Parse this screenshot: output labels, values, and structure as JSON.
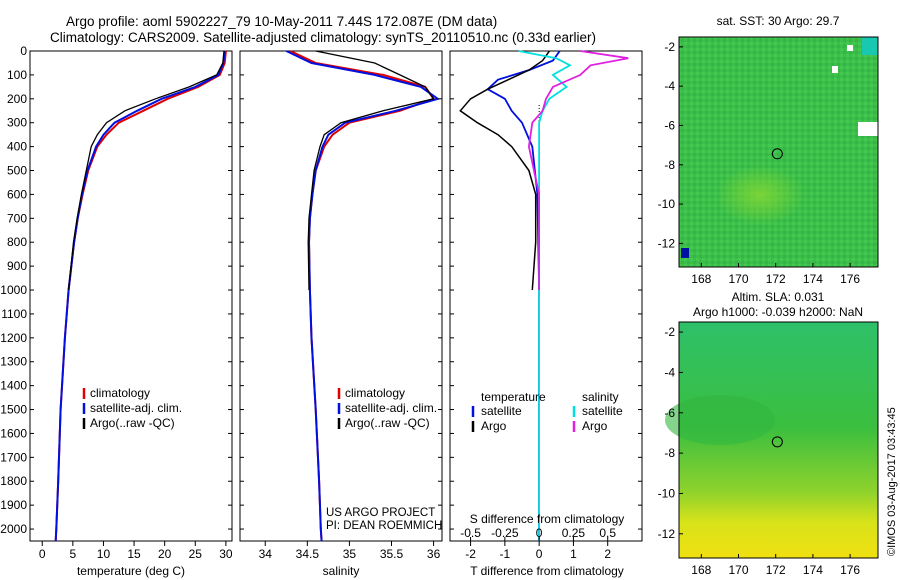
{
  "header": {
    "line1": "Argo profile: aoml 5902227_79 10-May-2011 7.44S 172.087E (DM data)",
    "line2": "Climatology: CARS2009. Satellite-adjusted climatology: synTS_20110510.nc (0.33d earlier)"
  },
  "side_label": "©IMOS 03-Aug-2017 03:43:45",
  "colors": {
    "climatology": "#e00000",
    "satellite": "#0010e0",
    "argo": "#000000",
    "sal_satellite": "#00e0e0",
    "sal_argo": "#e020e0"
  },
  "chart_data": [
    {
      "type": "line",
      "name": "temperature-profile",
      "xlabel": "temperature (deg C)",
      "ylabel": "",
      "xlim": [
        -2,
        31
      ],
      "ylim": [
        2050,
        0
      ],
      "xticks": [
        0,
        5,
        10,
        15,
        20,
        25,
        30
      ],
      "yticks": [
        0,
        100,
        200,
        300,
        400,
        500,
        600,
        700,
        800,
        900,
        1000,
        1100,
        1200,
        1300,
        1400,
        1500,
        1600,
        1700,
        1800,
        1900,
        2000
      ],
      "legend": [
        "climatology",
        "satellite-adj. clim.",
        "Argo(..raw -QC)"
      ],
      "legend_position": "bottom-center",
      "series": [
        {
          "name": "climatology",
          "depth": [
            0,
            50,
            100,
            150,
            200,
            250,
            300,
            350,
            400,
            500,
            600,
            700,
            800,
            1000,
            1200,
            1500,
            1800,
            2000,
            2050
          ],
          "values": [
            30.0,
            29.8,
            29.0,
            25.5,
            20.5,
            16.5,
            12.5,
            10.5,
            9.0,
            7.5,
            6.6,
            5.8,
            5.2,
            4.3,
            3.7,
            3.0,
            2.6,
            2.3,
            2.2
          ]
        },
        {
          "name": "satellite",
          "depth": [
            0,
            50,
            100,
            150,
            200,
            250,
            300,
            350,
            400,
            500,
            600,
            700,
            800,
            1000,
            1200,
            1500,
            1800,
            2000,
            2050
          ],
          "values": [
            29.8,
            29.6,
            28.8,
            25.0,
            19.5,
            15.5,
            11.8,
            10.0,
            8.8,
            7.4,
            6.5,
            5.8,
            5.2,
            4.3,
            3.7,
            3.0,
            2.6,
            2.3,
            2.2
          ]
        },
        {
          "name": "argo",
          "depth": [
            0,
            50,
            100,
            150,
            200,
            250,
            300,
            350,
            400,
            500,
            600,
            700,
            800,
            1000
          ],
          "values": [
            29.7,
            29.5,
            28.5,
            24.0,
            18.5,
            13.5,
            10.5,
            9.0,
            8.0,
            7.2,
            6.4,
            5.7,
            5.1,
            4.3
          ]
        }
      ]
    },
    {
      "type": "line",
      "name": "salinity-profile",
      "xlabel": "salinity",
      "xlim": [
        33.7,
        36.1
      ],
      "ylim": [
        2050,
        0
      ],
      "xticks": [
        34,
        34.5,
        35,
        35.5,
        36
      ],
      "legend": [
        "climatology",
        "satellite-adj. clim.",
        "Argo(..raw -QC)"
      ],
      "legend_position": "bottom-right",
      "annotation": [
        "US ARGO PROJECT",
        "PI: DEAN ROEMMICH"
      ],
      "series": [
        {
          "name": "climatology",
          "depth": [
            0,
            50,
            100,
            150,
            200,
            250,
            300,
            350,
            400,
            500,
            600,
            700,
            800,
            1000,
            1200,
            1500,
            1800,
            2000,
            2050
          ],
          "values": [
            34.3,
            34.6,
            35.4,
            35.9,
            36.0,
            35.6,
            35.0,
            34.8,
            34.7,
            34.6,
            34.56,
            34.53,
            34.52,
            34.53,
            34.55,
            34.6,
            34.64,
            34.66,
            34.67
          ]
        },
        {
          "name": "satellite",
          "depth": [
            0,
            50,
            100,
            150,
            200,
            250,
            300,
            350,
            400,
            500,
            600,
            700,
            800,
            1000,
            1200,
            1500,
            1800,
            2000,
            2050
          ],
          "values": [
            34.25,
            34.55,
            35.3,
            35.85,
            36.05,
            35.55,
            34.95,
            34.75,
            34.68,
            34.6,
            34.56,
            34.53,
            34.52,
            34.53,
            34.55,
            34.6,
            34.64,
            34.66,
            34.67
          ]
        },
        {
          "name": "argo",
          "depth": [
            0,
            50,
            100,
            150,
            200,
            250,
            300,
            350,
            400,
            500,
            600,
            700,
            800,
            1000
          ],
          "values": [
            34.6,
            35.3,
            35.6,
            35.9,
            36.0,
            35.4,
            34.9,
            34.7,
            34.65,
            34.58,
            34.55,
            34.52,
            34.51,
            34.52
          ]
        }
      ]
    },
    {
      "type": "line",
      "name": "difference-from-climatology",
      "xlabel": "T difference from climatology",
      "xlabel_top": "S difference from climatology",
      "xlim": [
        -2.6,
        3.0
      ],
      "ylim": [
        2050,
        0
      ],
      "xticks_t": [
        -2,
        -1,
        0,
        1,
        2
      ],
      "xticks_s": [
        "-0.5",
        "-0.25",
        "0",
        "0.25",
        "0.5"
      ],
      "xticks_s_pos": [
        -2,
        -1,
        0,
        1,
        2
      ],
      "legend_temperature": {
        "title": "temperature",
        "items": [
          "satellite",
          "Argo"
        ]
      },
      "legend_salinity": {
        "title": "salinity",
        "items": [
          "satellite",
          "Argo"
        ]
      },
      "series": [
        {
          "name": "T satellite",
          "depth": [
            0,
            40,
            80,
            120,
            160,
            200,
            250,
            300,
            400,
            600,
            1000,
            2050
          ],
          "values": [
            0.6,
            0.4,
            -0.3,
            -1.2,
            -1.5,
            -1.0,
            -0.8,
            -0.5,
            -0.2,
            -0.05,
            0.0,
            0.0
          ]
        },
        {
          "name": "T argo",
          "depth": [
            0,
            40,
            80,
            120,
            160,
            200,
            250,
            300,
            350,
            400,
            500,
            600,
            800,
            1000
          ],
          "values": [
            0.3,
            0.1,
            -0.3,
            -0.9,
            -1.5,
            -2.0,
            -2.3,
            -1.8,
            -1.2,
            -0.8,
            -0.3,
            -0.1,
            -0.1,
            -0.2
          ]
        },
        {
          "name": "S satellite",
          "depth": [
            0,
            30,
            60,
            100,
            150,
            200,
            250,
            300,
            400,
            600,
            1000,
            2050
          ],
          "values": [
            -0.6,
            0.5,
            0.9,
            0.4,
            0.8,
            0.3,
            0.1,
            0.0,
            0.0,
            0.0,
            0.0,
            0.0
          ]
        },
        {
          "name": "S argo",
          "depth": [
            0,
            30,
            60,
            100,
            150,
            200,
            250,
            300,
            400,
            600,
            800,
            1000
          ],
          "values": [
            1.2,
            2.6,
            1.5,
            1.2,
            0.4,
            0.2,
            0.1,
            -0.2,
            -0.3,
            0.0,
            0.0,
            0.0
          ]
        }
      ]
    },
    {
      "type": "heatmap",
      "name": "sst-map",
      "title": "sat. SST: 30 Argo: 29.7",
      "xticks": [
        168,
        170,
        172,
        174,
        176
      ],
      "yticks": [
        -2,
        -4,
        -6,
        -8,
        -10,
        -12
      ],
      "xlim": [
        166.8,
        177.5
      ],
      "ylim": [
        -13.2,
        -1.5
      ],
      "marker": {
        "lon": 172.087,
        "lat": -7.44
      }
    },
    {
      "type": "heatmap",
      "name": "sla-map",
      "title": "Altim. SLA: 0.031",
      "subtitle": "Argo h1000: -0.039 h2000: NaN",
      "xticks": [
        168,
        170,
        172,
        174,
        176
      ],
      "yticks": [
        -2,
        -4,
        -6,
        -8,
        -10,
        -12
      ],
      "xlim": [
        166.8,
        177.5
      ],
      "ylim": [
        -13.2,
        -1.5
      ],
      "marker": {
        "lon": 172.087,
        "lat": -7.44
      }
    }
  ]
}
